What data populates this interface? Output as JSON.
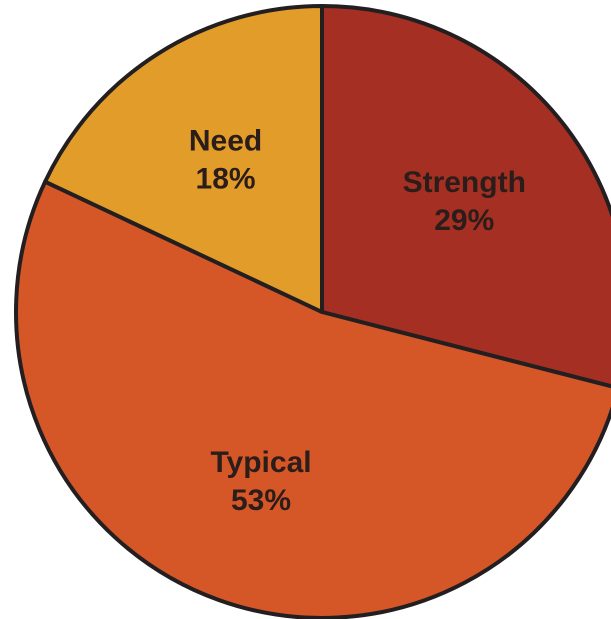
{
  "chart_data": {
    "type": "pie",
    "title": "",
    "start_angle_deg": 0,
    "direction": "clockwise",
    "label_color": "#2b1d1a",
    "outline_color": "#231f20",
    "slices": [
      {
        "label": "Strength",
        "value": 29,
        "value_label": "29%",
        "color": "#a52f22"
      },
      {
        "label": "Typical",
        "value": 53,
        "value_label": "53%",
        "color": "#d55627"
      },
      {
        "label": "Need",
        "value": 18,
        "value_label": "18%",
        "color": "#e19c2a"
      }
    ]
  }
}
